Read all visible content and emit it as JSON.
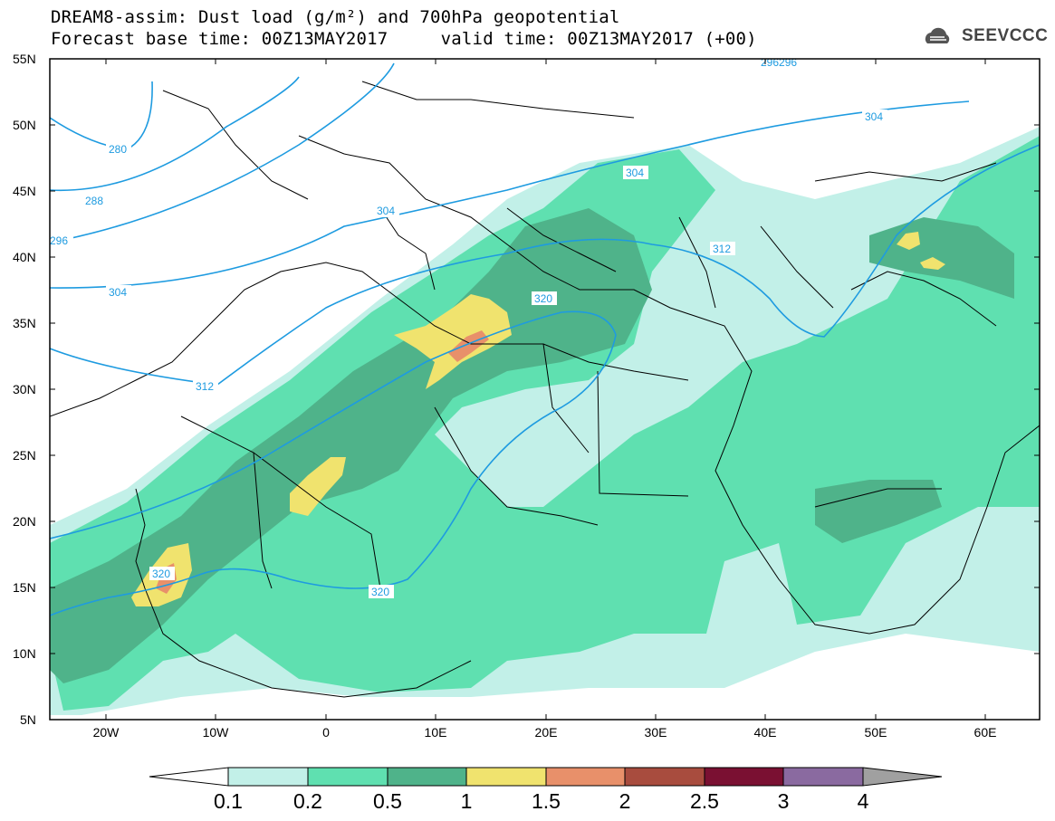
{
  "header": {
    "title_line1": "DREAM8-assim: Dust load (g/m²) and 700hPa geopotential",
    "title_line2": "Forecast base time: 00Z13MAY2017     valid time: 00Z13MAY2017 (+00)"
  },
  "logo": {
    "text": "SEEVCCC",
    "icon": "cloud-logo-icon"
  },
  "axes": {
    "lat_labels": [
      "55N",
      "50N",
      "45N",
      "40N",
      "35N",
      "30N",
      "25N",
      "20N",
      "15N",
      "10N",
      "5N"
    ],
    "lon_labels": [
      "20W",
      "10W",
      "0",
      "10E",
      "20E",
      "30E",
      "40E",
      "50E",
      "60E"
    ]
  },
  "contour_labels": [
    "280",
    "288",
    "296",
    "304",
    "304",
    "304",
    "304",
    "312",
    "312",
    "320",
    "320",
    "320",
    "296296"
  ],
  "colorbar": {
    "labels": [
      "0.1",
      "0.2",
      "0.5",
      "1",
      "1.5",
      "2",
      "2.5",
      "3",
      "4"
    ],
    "colors": [
      "#c2f0e8",
      "#5fe0b0",
      "#4fb38a",
      "#f0e36e",
      "#e8906a",
      "#a84c3e",
      "#7a1032",
      "#8a6aa0",
      "#a0a0a0"
    ]
  },
  "colors": {
    "contour": "#1e9be0",
    "land_line": "#000000"
  }
}
